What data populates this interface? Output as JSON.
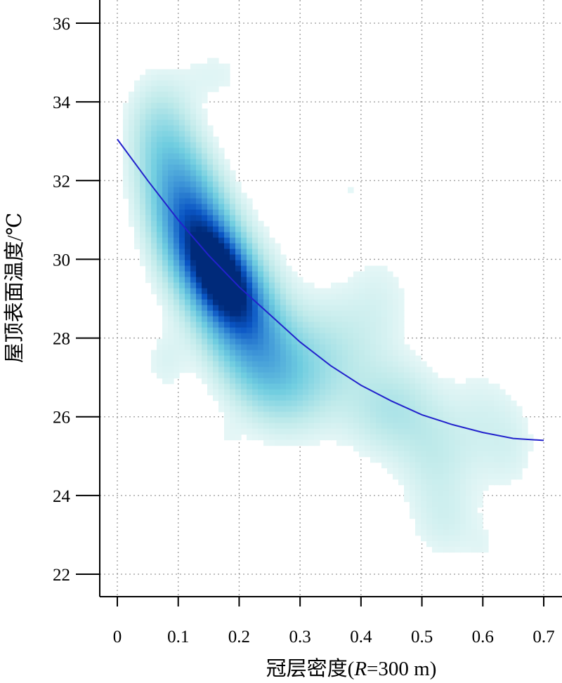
{
  "chart_data": {
    "type": "heatmap",
    "subtype": "density scatter with fitted curve",
    "title": "",
    "xlabel_prefix": "冠层密度(",
    "xlabel_italic": "R",
    "xlabel_suffix": "=300 m)",
    "ylabel": "屋顶表面温度/℃",
    "xlim": [
      -0.027,
      0.73
    ],
    "ylim": [
      21.2,
      36.5
    ],
    "x_ticks": [
      "0",
      "0.1",
      "0.2",
      "0.3",
      "0.4",
      "0.5",
      "0.6",
      "0.7"
    ],
    "y_ticks": [
      "22",
      "24",
      "26",
      "28",
      "30",
      "32",
      "34",
      "36"
    ],
    "grid": true,
    "fit_curve": {
      "x": [
        0.0,
        0.05,
        0.1,
        0.15,
        0.2,
        0.25,
        0.3,
        0.35,
        0.4,
        0.45,
        0.5,
        0.55,
        0.6,
        0.65,
        0.7
      ],
      "y": [
        33.05,
        32.0,
        31.0,
        30.1,
        29.3,
        28.6,
        27.9,
        27.3,
        26.8,
        26.4,
        26.05,
        25.8,
        25.6,
        25.45,
        25.4
      ],
      "color": "#2222cc"
    },
    "density": {
      "colormap": [
        "#ffffff",
        "#bfeaea",
        "#6fcde0",
        "#3f97d8",
        "#0a55c4",
        "#002a7a"
      ],
      "peak": {
        "x": 0.17,
        "y": 29.6
      },
      "clusters": [
        {
          "x": 0.17,
          "y": 29.6,
          "sx": 0.035,
          "sy": 0.8,
          "w": 1.0,
          "rho": -0.55
        },
        {
          "x": 0.14,
          "y": 30.4,
          "sx": 0.045,
          "sy": 1.4,
          "w": 0.55,
          "rho": -0.5
        },
        {
          "x": 0.21,
          "y": 28.5,
          "sx": 0.05,
          "sy": 1.3,
          "w": 0.45,
          "rho": -0.4
        },
        {
          "x": 0.1,
          "y": 31.3,
          "sx": 0.04,
          "sy": 1.3,
          "w": 0.3,
          "rho": -0.3
        },
        {
          "x": 0.27,
          "y": 27.2,
          "sx": 0.05,
          "sy": 0.9,
          "w": 0.22,
          "rho": -0.2
        },
        {
          "x": 0.07,
          "y": 33.3,
          "sx": 0.035,
          "sy": 0.9,
          "w": 0.12,
          "rho": 0.0
        },
        {
          "x": 0.35,
          "y": 27.6,
          "sx": 0.05,
          "sy": 1.0,
          "w": 0.13,
          "rho": 0.0
        },
        {
          "x": 0.45,
          "y": 26.2,
          "sx": 0.05,
          "sy": 0.8,
          "w": 0.16,
          "rho": 0.0
        },
        {
          "x": 0.43,
          "y": 28.9,
          "sx": 0.04,
          "sy": 1.0,
          "w": 0.06,
          "rho": 0.0
        },
        {
          "x": 0.52,
          "y": 25.0,
          "sx": 0.04,
          "sy": 0.9,
          "w": 0.1,
          "rho": 0.0
        },
        {
          "x": 0.6,
          "y": 25.8,
          "sx": 0.04,
          "sy": 1.0,
          "w": 0.07,
          "rho": 0.0
        },
        {
          "x": 0.54,
          "y": 23.3,
          "sx": 0.04,
          "sy": 0.7,
          "w": 0.07,
          "rho": 0.0
        },
        {
          "x": 0.65,
          "y": 25.2,
          "sx": 0.03,
          "sy": 0.8,
          "w": 0.05,
          "rho": 0.0
        },
        {
          "x": 0.38,
          "y": 31.8,
          "sx": 0.03,
          "sy": 0.6,
          "w": 0.04,
          "rho": 0.0
        },
        {
          "x": 0.16,
          "y": 34.7,
          "sx": 0.04,
          "sy": 0.5,
          "w": 0.05,
          "rho": 0.0
        },
        {
          "x": 0.33,
          "y": 23.9,
          "sx": 0.02,
          "sy": 0.4,
          "w": 0.03,
          "rho": 0.0
        },
        {
          "x": 0.6,
          "y": 22.7,
          "sx": 0.02,
          "sy": 0.4,
          "w": 0.03,
          "rho": 0.0
        },
        {
          "x": 0.18,
          "y": 25.4,
          "sx": 0.02,
          "sy": 0.4,
          "w": 0.03,
          "rho": 0.0
        },
        {
          "x": 0.08,
          "y": 27.4,
          "sx": 0.025,
          "sy": 0.6,
          "w": 0.06,
          "rho": 0.0
        }
      ]
    }
  }
}
